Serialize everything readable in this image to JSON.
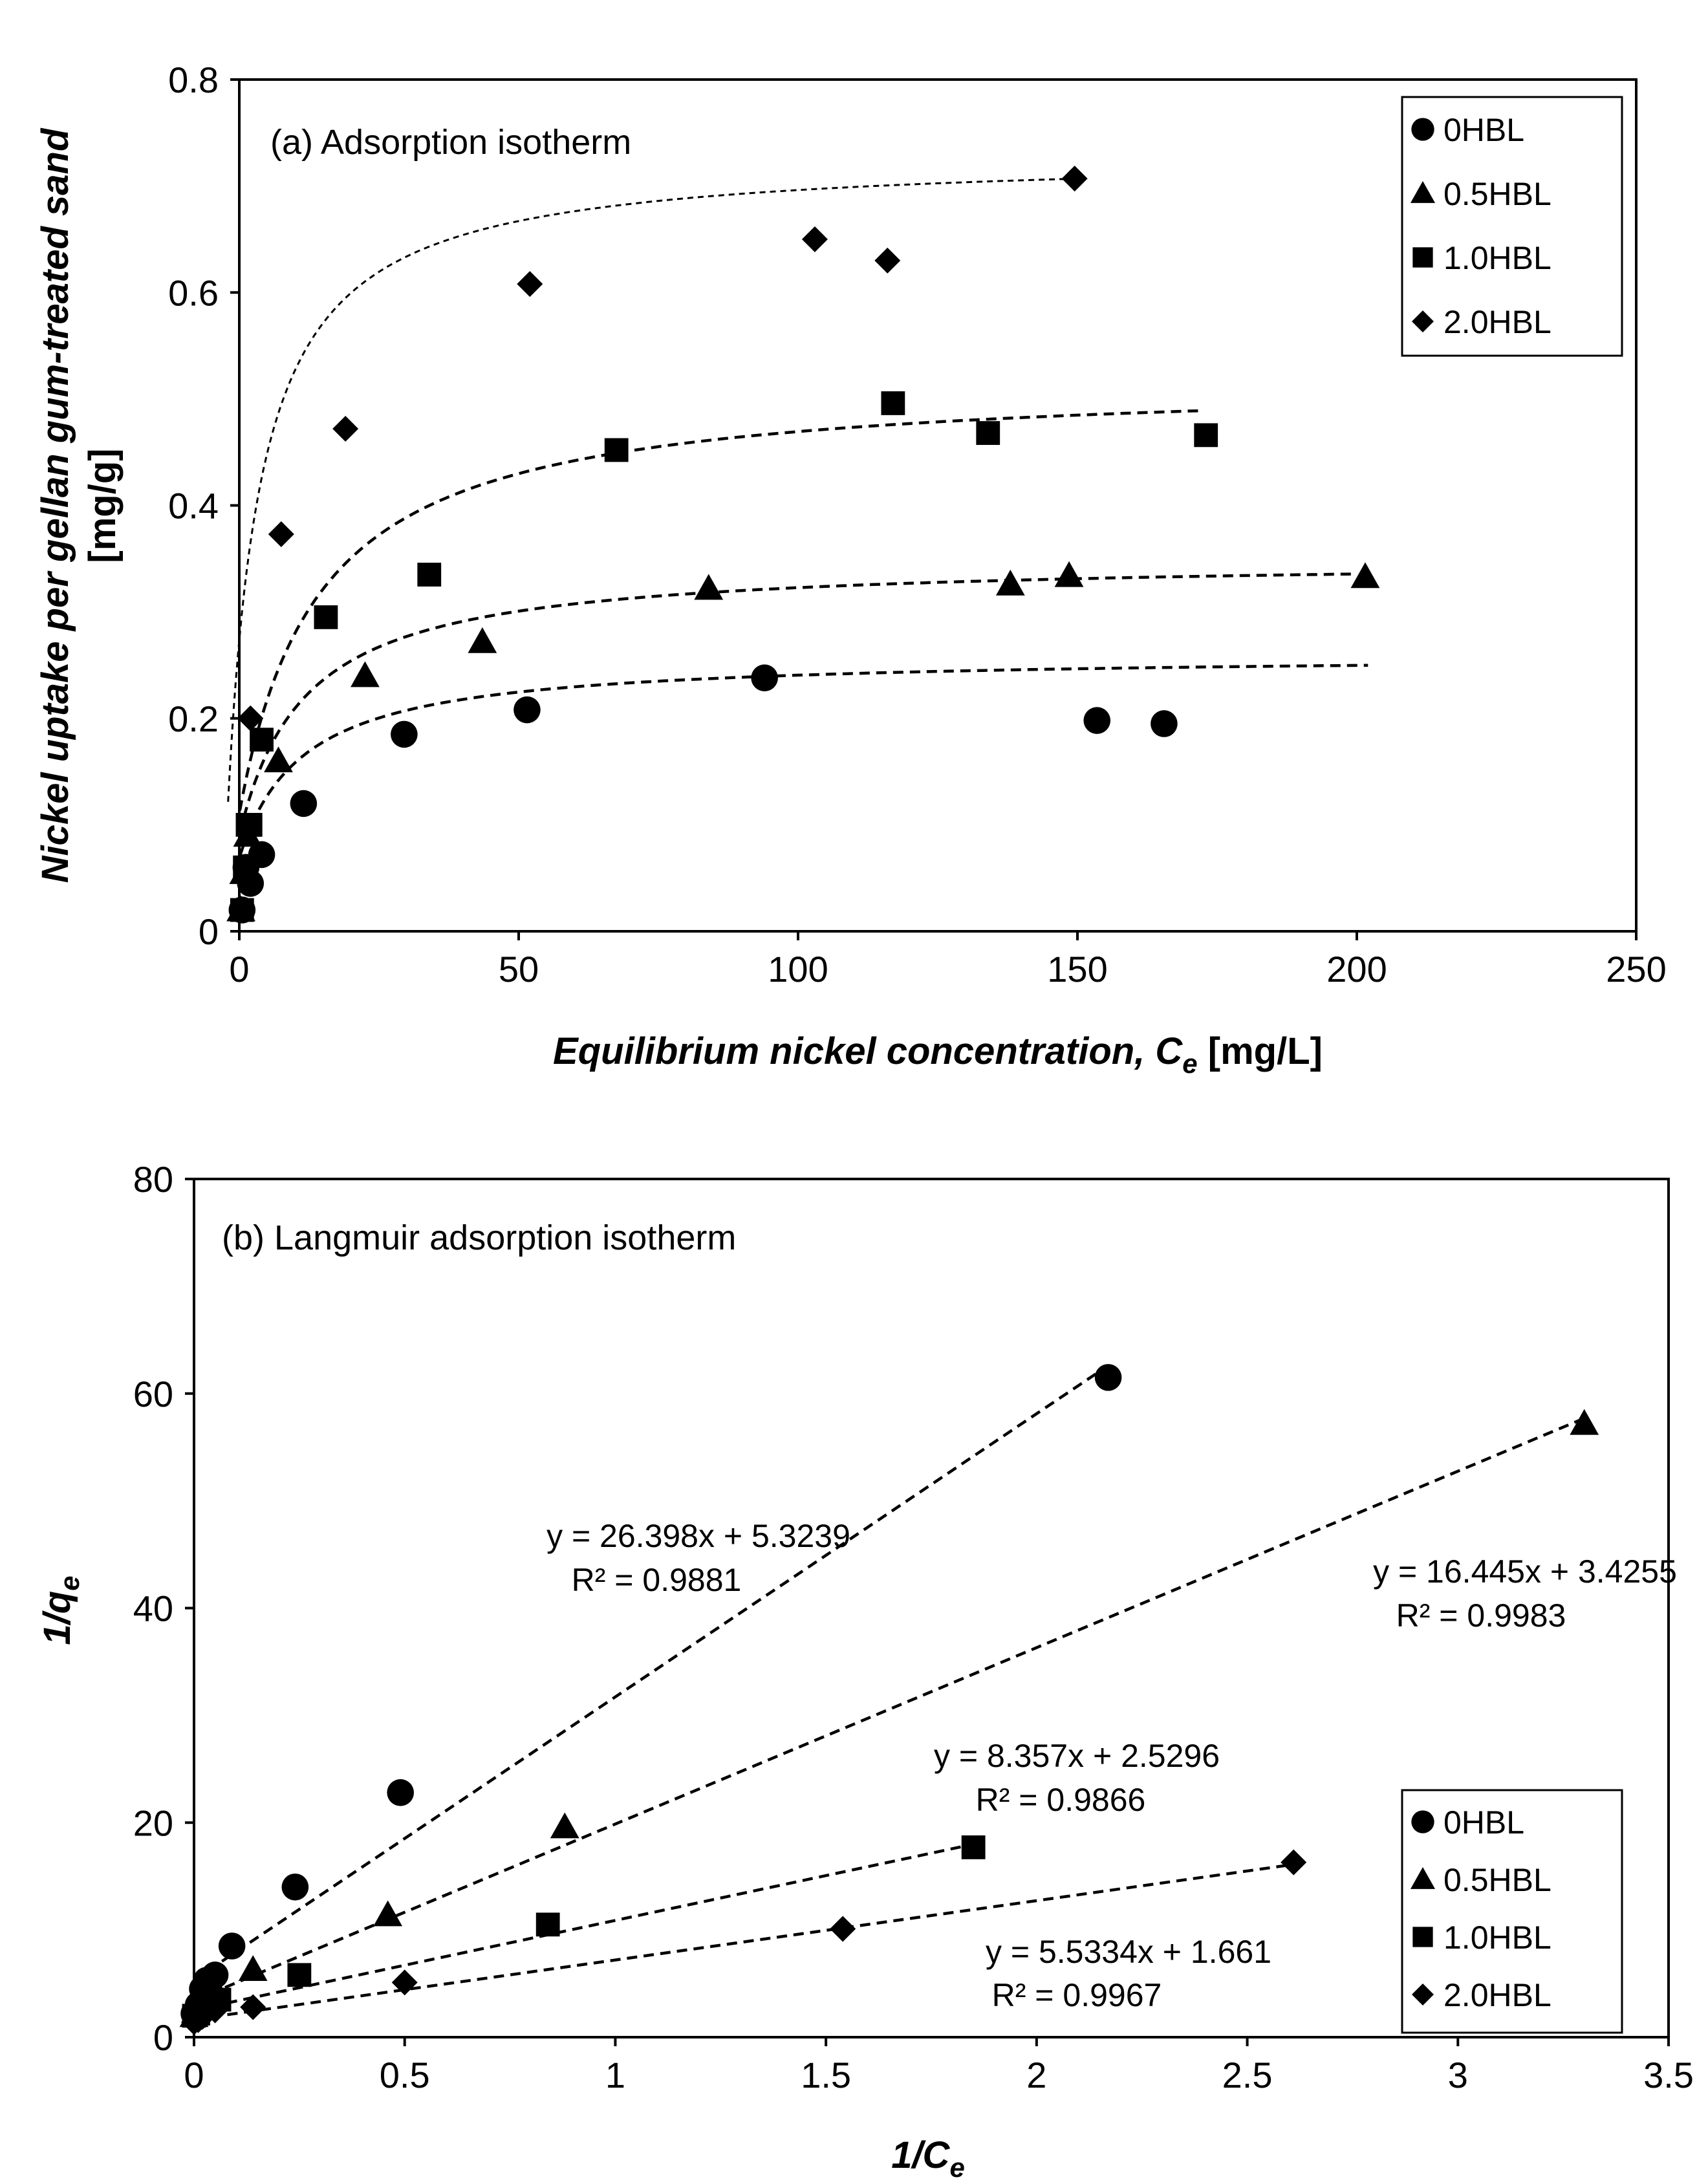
{
  "chart_data": [
    {
      "id": "a",
      "type": "scatter",
      "title": "(a) Adsorption isotherm",
      "xlabel": "Equilibrium  nickel concentration, C",
      "xlabel_sub": "e",
      "xlabel_unit": " [mg/L]",
      "ylabel_line1": "Nickel uptake per gellan gum-treated sand",
      "ylabel_line2": "[mg/g]",
      "xlim": [
        0,
        250
      ],
      "ylim": [
        0,
        0.8
      ],
      "xticks": [
        0,
        50,
        100,
        150,
        200,
        250
      ],
      "yticks": [
        0,
        0.2,
        0.4,
        0.6,
        0.8
      ],
      "xtick_labels": [
        "0",
        "50",
        "100",
        "150",
        "200",
        "250"
      ],
      "ytick_labels": [
        "0",
        "0.2",
        "0.4",
        "0.6",
        "0.8"
      ],
      "legend_position": "top-right",
      "series": [
        {
          "name": "0HBL",
          "marker": "circle",
          "x": [
            0.5,
            1.2,
            2.0,
            4.0,
            11.5,
            29.5,
            51.5,
            94.0,
            153.5,
            165.5
          ],
          "y": [
            0.02,
            0.06,
            0.045,
            0.072,
            0.12,
            0.185,
            0.208,
            0.238,
            0.198,
            0.195
          ],
          "fit": {
            "qmax": 0.26,
            "K": 0.12,
            "xmin": 0.1,
            "xmax": 202
          }
        },
        {
          "name": "0.5HBL",
          "marker": "triangle",
          "x": [
            0.3,
            0.8,
            1.5,
            7.0,
            22.5,
            43.5,
            84.0,
            138.0,
            148.5,
            201.5
          ],
          "y": [
            0.02,
            0.055,
            0.09,
            0.16,
            0.24,
            0.272,
            0.322,
            0.326,
            0.334,
            0.333
          ],
          "fit": {
            "qmax": 0.35,
            "K": 0.115,
            "xmin": 0.1,
            "xmax": 200
          }
        },
        {
          "name": "1.0HBL",
          "marker": "square",
          "x": [
            0.5,
            1.0,
            1.5,
            2.0,
            4.0,
            15.5,
            34.0,
            67.5,
            117.0,
            134.0,
            173.0
          ],
          "y": [
            0.02,
            0.06,
            0.1,
            0.1,
            0.18,
            0.295,
            0.335,
            0.452,
            0.496,
            0.468,
            0.466
          ],
          "fit": {
            "qmax": 0.52,
            "K": 0.09,
            "xmin": 0.1,
            "xmax": 172
          }
        },
        {
          "name": "2.0HBL",
          "marker": "diamond",
          "x": [
            2.0,
            7.5,
            19.0,
            52.0,
            103.0,
            116.0,
            149.5
          ],
          "y": [
            0.2,
            0.373,
            0.472,
            0.608,
            0.65,
            0.63,
            0.707
          ],
          "fit": {
            "qmax": 0.73,
            "K": 0.2,
            "xmin": -2,
            "xmax": 149.5
          }
        }
      ]
    },
    {
      "id": "b",
      "type": "scatter",
      "title": "(b) Langmuir adsorption isotherm",
      "xlabel": "1/C",
      "xlabel_sub": "e",
      "ylabel": "1/q",
      "ylabel_sub": "e",
      "xlim": [
        0,
        3.5
      ],
      "ylim": [
        0,
        80
      ],
      "xticks": [
        0,
        0.5,
        1,
        1.5,
        2,
        2.5,
        3,
        3.5
      ],
      "yticks": [
        0,
        20,
        40,
        60,
        80
      ],
      "xtick_labels": [
        "0",
        "0.5",
        "1",
        "1.5",
        "2",
        "2.5",
        "3",
        "3.5"
      ],
      "ytick_labels": [
        "0",
        "20",
        "40",
        "60",
        "80"
      ],
      "legend_position": "bottom-right",
      "series": [
        {
          "name": "0HBL",
          "marker": "circle",
          "x": [
            0.0,
            0.01,
            0.02,
            0.03,
            0.05,
            0.09,
            0.24,
            0.49,
            2.17
          ],
          "y": [
            2.2,
            3.0,
            4.5,
            5.3,
            5.8,
            8.5,
            14.0,
            22.8,
            61.5
          ],
          "fit": {
            "slope": 26.398,
            "intercept": 5.3239,
            "xmax": 2.17,
            "equation": "y = 26.398x + 5.3239",
            "r2": "R² = 0.9881"
          }
        },
        {
          "name": "0.5HBL",
          "marker": "triangle",
          "x": [
            0.0,
            0.01,
            0.02,
            0.05,
            0.14,
            0.46,
            0.88,
            3.3
          ],
          "y": [
            2.0,
            2.8,
            3.0,
            4.5,
            6.3,
            11.4,
            19.6,
            57.2
          ],
          "fit": {
            "slope": 16.445,
            "intercept": 3.4255,
            "xmax": 3.3,
            "equation": "y = 16.445x + 3.4255",
            "r2": "R² = 0.9983"
          }
        },
        {
          "name": "1.0HBL",
          "marker": "square",
          "x": [
            0.0,
            0.01,
            0.03,
            0.06,
            0.25,
            0.84,
            1.85
          ],
          "y": [
            2.0,
            2.2,
            2.8,
            3.5,
            5.8,
            10.5,
            17.7
          ],
          "fit": {
            "slope": 8.357,
            "intercept": 2.5296,
            "xmax": 1.85,
            "equation": "y = 8.357x + 2.5296",
            "r2": "R² = 0.9866"
          }
        },
        {
          "name": "2.0HBL",
          "marker": "diamond",
          "x": [
            0.0,
            0.01,
            0.02,
            0.05,
            0.14,
            0.5,
            1.54,
            2.61
          ],
          "y": [
            1.4,
            1.6,
            1.9,
            2.5,
            2.8,
            5.1,
            10.1,
            16.3
          ],
          "fit": {
            "slope": 5.5334,
            "intercept": 1.661,
            "xmax": 2.61,
            "equation": "y = 5.5334x + 1.661",
            "r2": "R² = 0.9967"
          }
        }
      ]
    }
  ]
}
